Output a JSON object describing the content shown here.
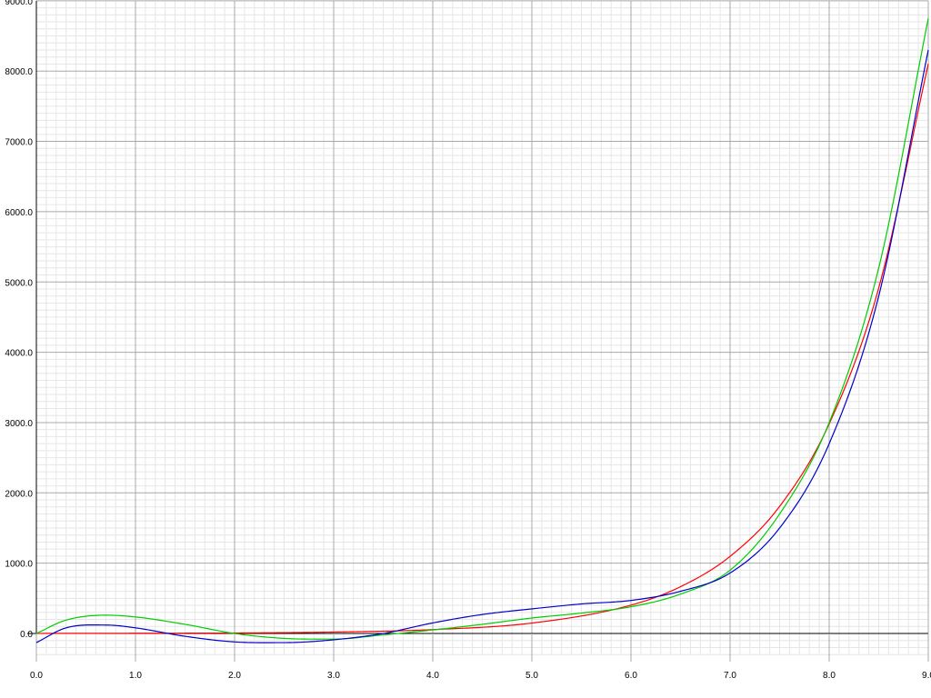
{
  "chart_data": {
    "type": "line",
    "title": "",
    "xlabel": "",
    "ylabel": "",
    "xlim": [
      0.0,
      9.0
    ],
    "ylim": [
      -300.0,
      9000.0
    ],
    "grid": {
      "major": true,
      "minor": true
    },
    "x_ticks": [
      {
        "value": 0,
        "label": "0.0"
      },
      {
        "value": 1,
        "label": "1.0"
      },
      {
        "value": 2,
        "label": "2.0"
      },
      {
        "value": 3,
        "label": "3.0"
      },
      {
        "value": 4,
        "label": "4.0"
      },
      {
        "value": 5,
        "label": "5.0"
      },
      {
        "value": 6,
        "label": "6.0"
      },
      {
        "value": 7,
        "label": "7.0"
      },
      {
        "value": 8,
        "label": "8.0"
      },
      {
        "value": 9,
        "label": "9.0"
      }
    ],
    "y_ticks": [
      {
        "value": 0,
        "label": "0.0"
      },
      {
        "value": 1000,
        "label": "1000.0"
      },
      {
        "value": 2000,
        "label": "2000.0"
      },
      {
        "value": 3000,
        "label": "3000.0"
      },
      {
        "value": 4000,
        "label": "4000.0"
      },
      {
        "value": 5000,
        "label": "5000.0"
      },
      {
        "value": 6000,
        "label": "6000.0"
      },
      {
        "value": 7000,
        "label": "7000.0"
      },
      {
        "value": 8000,
        "label": "8000.0"
      },
      {
        "value": 9000,
        "label": "9000.0"
      }
    ],
    "series": [
      {
        "color": "#ff0000",
        "x": [
          0,
          1,
          2,
          3,
          4,
          5,
          6,
          6.5,
          7,
          7.5,
          8,
          8.5,
          9
        ],
        "y": [
          1,
          3,
          7,
          20,
          55,
          148,
          403,
          665,
          1097,
          1808,
          2981,
          4915,
          8103
        ]
      },
      {
        "color": "#00cc00",
        "x": [
          0,
          0.3,
          0.7,
          1.0,
          1.5,
          2.0,
          2.5,
          3.0,
          3.5,
          4.0,
          4.5,
          5.0,
          5.5,
          6.0,
          6.5,
          7.0,
          7.5,
          8.0,
          8.5,
          9.0
        ],
        "y": [
          0,
          190,
          260,
          235,
          130,
          0,
          -70,
          -80,
          -20,
          50,
          130,
          220,
          290,
          380,
          560,
          900,
          1700,
          3000,
          5200,
          8750
        ]
      },
      {
        "color": "#0000cc",
        "x": [
          0,
          0.3,
          0.7,
          1.0,
          1.5,
          2.0,
          2.5,
          3.0,
          3.5,
          4.0,
          4.5,
          5.0,
          5.5,
          6.0,
          6.5,
          7.0,
          7.5,
          8.0,
          8.5,
          9.0
        ],
        "y": [
          -130,
          80,
          120,
          80,
          -40,
          -120,
          -130,
          -90,
          0,
          150,
          270,
          350,
          420,
          470,
          600,
          860,
          1500,
          2700,
          4800,
          8300
        ]
      }
    ]
  }
}
